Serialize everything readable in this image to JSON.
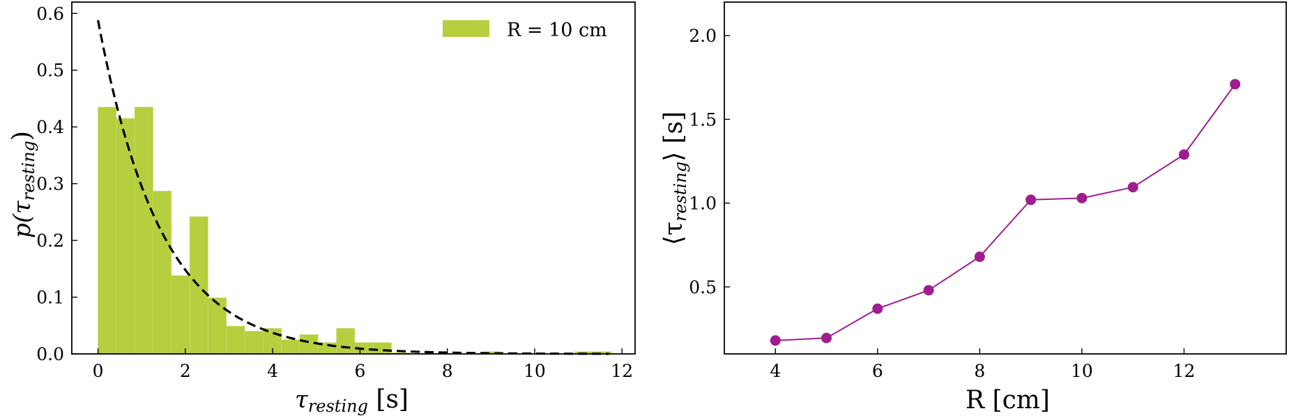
{
  "chart_data": [
    {
      "type": "bar",
      "subtype": "histogram",
      "xlabel": "τresting [s]",
      "ylabel": "p(τresting)",
      "xlim": [
        -0.6,
        12.3
      ],
      "ylim": [
        0,
        0.62
      ],
      "xticks": [
        0,
        2,
        4,
        6,
        8,
        10,
        12
      ],
      "yticks": [
        0.0,
        0.1,
        0.2,
        0.3,
        0.4,
        0.5,
        0.6
      ],
      "xtick_labels": [
        "0",
        "2",
        "4",
        "6",
        "8",
        "10",
        "12"
      ],
      "ytick_labels": [
        "0.0",
        "0.1",
        "0.2",
        "0.3",
        "0.4",
        "0.5",
        "0.6"
      ],
      "bin_width": 0.42,
      "bin_start": 0.0,
      "values": [
        0.435,
        0.415,
        0.435,
        0.287,
        0.138,
        0.242,
        0.099,
        0.049,
        0.04,
        0.045,
        0.025,
        0.034,
        0.02,
        0.045,
        0.02,
        0.02,
        0.002,
        0,
        0,
        0,
        0,
        0.004,
        0,
        0,
        0,
        0,
        0.004,
        0.004
      ],
      "series_name": "R = 10 cm",
      "bar_color": "#b5cf3e",
      "fit": {
        "style": "dashed",
        "color": "#000000",
        "function": "exponential",
        "amplitude": 0.588,
        "rate": 0.69,
        "x_range": [
          0,
          11.7
        ]
      },
      "legend": {
        "position": "top-right",
        "entries": [
          "R = 10 cm"
        ]
      },
      "grid": false
    },
    {
      "type": "line",
      "xlabel": "R [cm]",
      "ylabel": "⟨τresting⟩ [s]",
      "xlim": [
        3.0,
        14.0
      ],
      "ylim": [
        0.1,
        2.2
      ],
      "xticks": [
        4,
        6,
        8,
        10,
        12
      ],
      "yticks": [
        0.5,
        1.0,
        1.5,
        2.0
      ],
      "xtick_labels": [
        "4",
        "6",
        "8",
        "10",
        "12"
      ],
      "ytick_labels": [
        "0.5",
        "1.0",
        "1.5",
        "2.0"
      ],
      "x": [
        4,
        5,
        6,
        7,
        8,
        9,
        10,
        11,
        12,
        13
      ],
      "y": [
        0.18,
        0.195,
        0.37,
        0.48,
        0.68,
        1.02,
        1.03,
        1.095,
        1.29,
        1.71
      ],
      "color": "#9e1e8e",
      "marker": "circle",
      "grid": false
    }
  ],
  "labels": {
    "left_x_main": "τ",
    "left_x_sub": "resting",
    "left_x_unit": " [s]",
    "left_y_main": "p(τ",
    "left_y_sub": "resting",
    "left_y_close": ")",
    "right_x": "R [cm]",
    "right_y_open": "⟨τ",
    "right_y_sub": "resting",
    "right_y_close": "⟩ [s]",
    "legend_label": "R = 10 cm"
  }
}
